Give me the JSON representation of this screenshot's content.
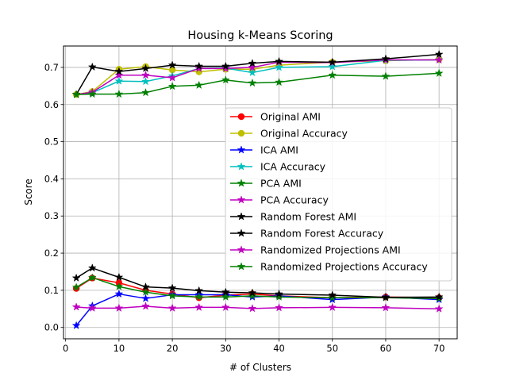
{
  "chart_data": {
    "type": "line",
    "title": "Housing k-Means Scoring",
    "xlabel": "# of Clusters",
    "ylabel": "Score",
    "xlim": [
      -0.4,
      73.4
    ],
    "ylim": [
      -0.0305,
      0.7575
    ],
    "x_ticks": [
      0,
      10,
      20,
      30,
      40,
      50,
      60,
      70
    ],
    "y_ticks": [
      0.0,
      0.1,
      0.2,
      0.3,
      0.4,
      0.5,
      0.6,
      0.7
    ],
    "x_tick_labels": [
      "0",
      "10",
      "20",
      "30",
      "40",
      "50",
      "60",
      "70"
    ],
    "y_tick_labels": [
      "0.0",
      "0.1",
      "0.2",
      "0.3",
      "0.4",
      "0.5",
      "0.6",
      "0.7"
    ],
    "grid": true,
    "legend_position": "center-right",
    "x": [
      2,
      5,
      10,
      15,
      20,
      25,
      30,
      35,
      40,
      50,
      60,
      70
    ],
    "series": [
      {
        "name": "Original AMI",
        "color": "#ff0000",
        "marker": "circle",
        "values": [
          0.105,
          0.133,
          0.12,
          0.1,
          0.09,
          0.08,
          0.087,
          0.09,
          0.085,
          0.08,
          0.082,
          0.08
        ]
      },
      {
        "name": "Original Accuracy",
        "color": "#bfbf00",
        "marker": "circle",
        "values": [
          0.627,
          0.635,
          0.695,
          0.702,
          0.693,
          0.688,
          0.695,
          0.695,
          0.706,
          0.714,
          0.718,
          0.721
        ]
      },
      {
        "name": "ICA AMI",
        "color": "#0000ff",
        "marker": "star",
        "values": [
          0.005,
          0.058,
          0.09,
          0.078,
          0.088,
          0.088,
          0.088,
          0.082,
          0.085,
          0.075,
          0.082,
          0.075
        ]
      },
      {
        "name": "ICA Accuracy",
        "color": "#00bfbf",
        "marker": "star",
        "values": [
          0.627,
          0.632,
          0.663,
          0.662,
          0.677,
          0.697,
          0.698,
          0.686,
          0.7,
          0.702,
          0.719,
          0.72
        ]
      },
      {
        "name": "PCA AMI",
        "color": "#008000",
        "marker": "star",
        "values": [
          0.108,
          0.134,
          0.11,
          0.095,
          0.085,
          0.082,
          0.082,
          0.085,
          0.082,
          0.08,
          0.08,
          0.078
        ]
      },
      {
        "name": "PCA Accuracy",
        "color": "#bf00bf",
        "marker": "star",
        "values": [
          0.627,
          0.633,
          0.679,
          0.679,
          0.672,
          0.697,
          0.697,
          0.7,
          0.714,
          0.713,
          0.72,
          0.72
        ]
      },
      {
        "name": "Random Forest AMI",
        "color": "#000000",
        "marker": "star",
        "values": [
          0.133,
          0.16,
          0.135,
          0.109,
          0.106,
          0.099,
          0.095,
          0.093,
          0.09,
          0.087,
          0.081,
          0.082
        ]
      },
      {
        "name": "Random Forest Accuracy",
        "color": "#000000",
        "marker": "star",
        "values": [
          0.627,
          0.701,
          0.689,
          0.697,
          0.706,
          0.703,
          0.703,
          0.711,
          0.716,
          0.714,
          0.723,
          0.735
        ]
      },
      {
        "name": "Randomized Projections AMI",
        "color": "#bf00bf",
        "marker": "star",
        "values": [
          0.055,
          0.052,
          0.052,
          0.057,
          0.052,
          0.054,
          0.054,
          0.051,
          0.053,
          0.054,
          0.053,
          0.05
        ]
      },
      {
        "name": "Randomized Projections Accuracy",
        "color": "#008000",
        "marker": "star",
        "values": [
          0.627,
          0.628,
          0.628,
          0.632,
          0.649,
          0.652,
          0.666,
          0.658,
          0.66,
          0.679,
          0.676,
          0.684
        ]
      }
    ]
  }
}
